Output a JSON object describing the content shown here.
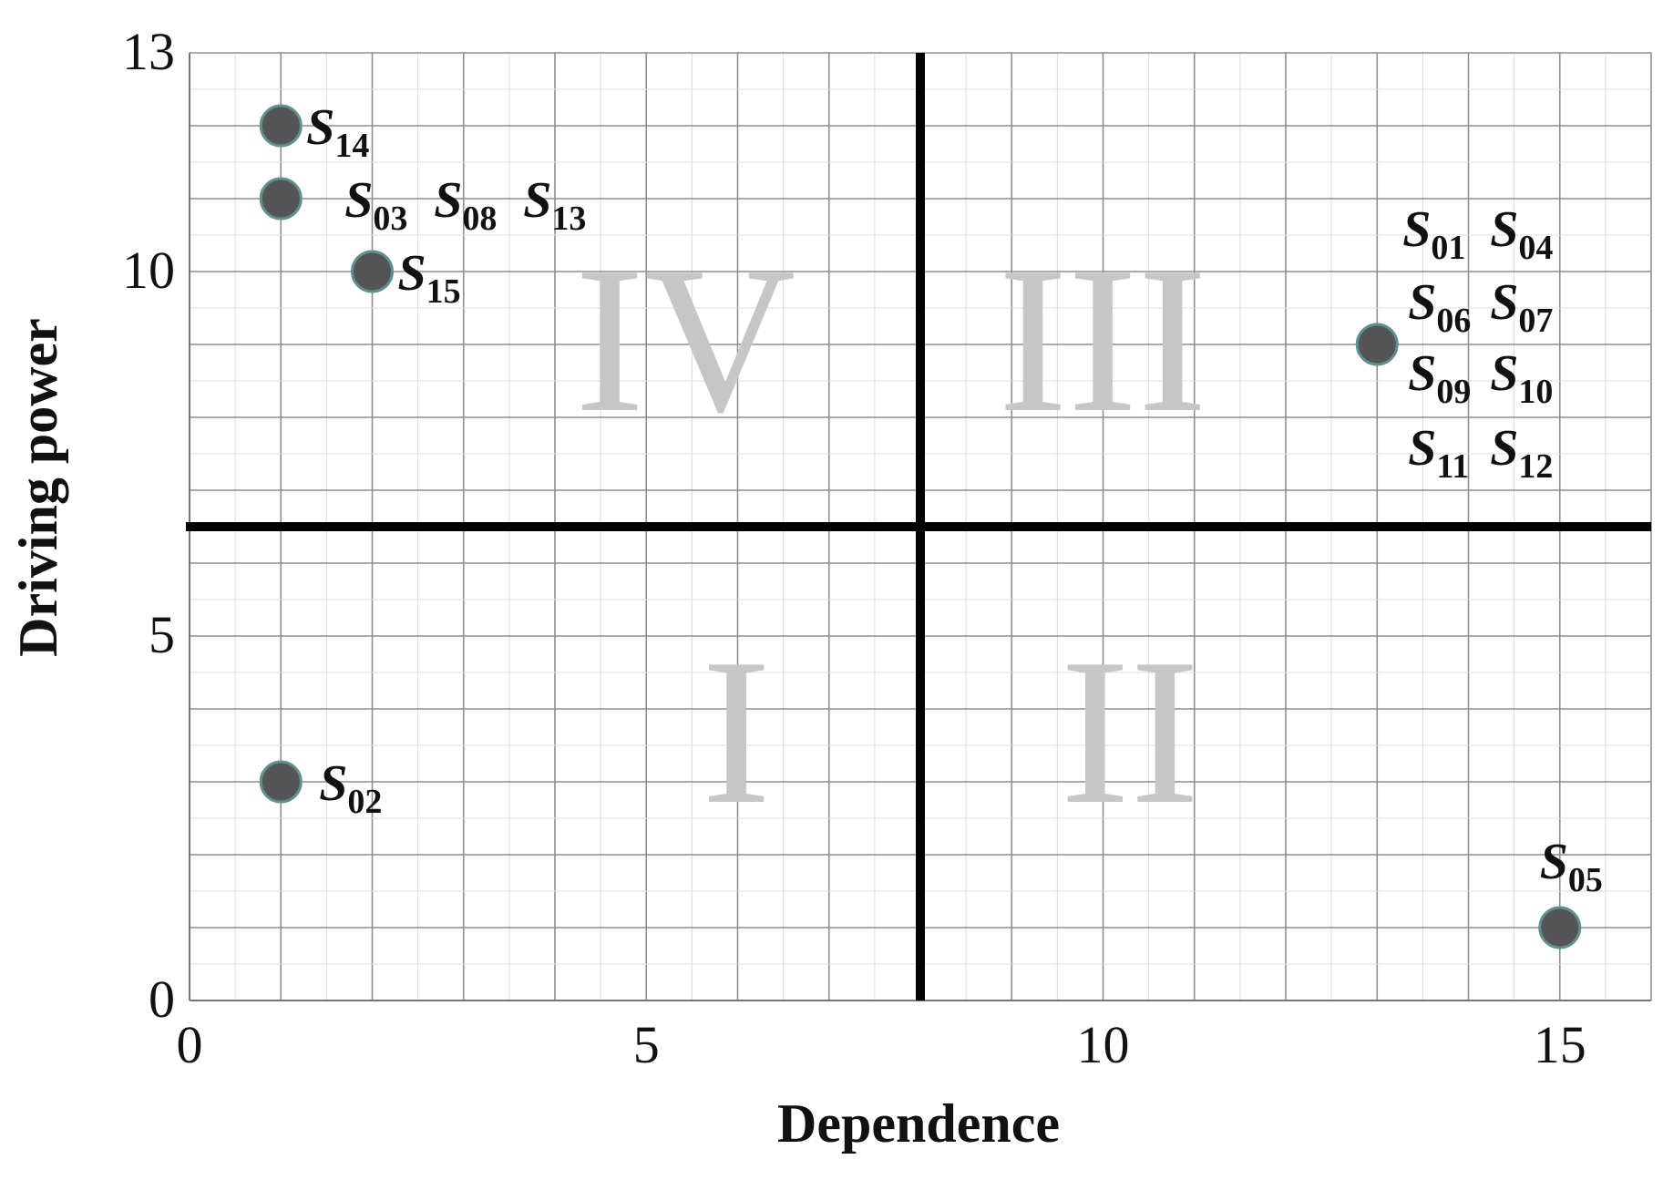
{
  "chart_data": {
    "type": "scatter",
    "xlabel": "Dependence",
    "ylabel": "Driving power",
    "xlim": [
      0,
      16
    ],
    "ylim": [
      0,
      13
    ],
    "xticks": [
      0,
      5,
      10,
      15
    ],
    "yticks": [
      0,
      5,
      10,
      13
    ],
    "grid": true,
    "dividers": {
      "x": 8,
      "y": 6.5
    },
    "quadrants": [
      {
        "label": "I"
      },
      {
        "label": "II"
      },
      {
        "label": "III"
      },
      {
        "label": "IV"
      }
    ],
    "points": [
      {
        "x": 1,
        "y": 12,
        "labels": [
          [
            "S",
            "14"
          ]
        ]
      },
      {
        "x": 1,
        "y": 11,
        "labels": [
          [
            "S",
            "03"
          ],
          [
            "S",
            "08"
          ],
          [
            "S",
            "13"
          ]
        ]
      },
      {
        "x": 2,
        "y": 10,
        "labels": [
          [
            "S",
            "15"
          ]
        ]
      },
      {
        "x": 1,
        "y": 3,
        "labels": [
          [
            "S",
            "02"
          ]
        ]
      },
      {
        "x": 13,
        "y": 9,
        "labels": [
          [
            "S",
            "01"
          ],
          [
            "S",
            "04"
          ],
          [
            "S",
            "06"
          ],
          [
            "S",
            "07"
          ],
          [
            "S",
            "09"
          ],
          [
            "S",
            "10"
          ],
          [
            "S",
            "11"
          ],
          [
            "S",
            "12"
          ]
        ]
      },
      {
        "x": 15,
        "y": 1,
        "labels": [
          [
            "S",
            "05"
          ]
        ]
      }
    ],
    "colors": {
      "marker": "#555555",
      "marker_edge": "#5f8f8f",
      "grid_major": "#8e8e8e",
      "grid_minor": "#dcdcdc",
      "divider": "#000000",
      "quadrant_text": "#c6c6c6"
    }
  }
}
